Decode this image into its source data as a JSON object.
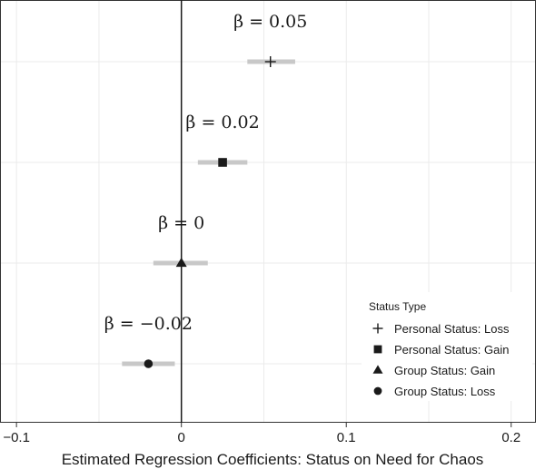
{
  "chart_data": {
    "type": "scatter",
    "xlabel": "Estimated Regression Coefficients: Status on Need for Chaos",
    "xlim": [
      -0.11,
      0.215
    ],
    "x_ticks": [
      -0.1,
      0,
      0.1,
      0.2
    ],
    "x_tick_labels": [
      "−0.1",
      "0",
      "0.1",
      "0.2"
    ],
    "grid": true,
    "reference_line_x": 0,
    "legend": {
      "title": "Status Type",
      "placement": "bottom-right",
      "entries": [
        "Personal Status: Loss",
        "Personal Status: Gain",
        "Group Status: Gain",
        "Group Status: Loss"
      ]
    },
    "series": [
      {
        "name": "Personal Status: Loss",
        "marker": "plus",
        "estimate": 0.054,
        "ci_low": 0.04,
        "ci_high": 0.069,
        "annotation": "β = 0.05"
      },
      {
        "name": "Personal Status: Gain",
        "marker": "square",
        "estimate": 0.025,
        "ci_low": 0.01,
        "ci_high": 0.04,
        "annotation": "β = 0.02"
      },
      {
        "name": "Group Status: Gain",
        "marker": "triangle",
        "estimate": 0.0,
        "ci_low": -0.017,
        "ci_high": 0.016,
        "annotation": "β = 0"
      },
      {
        "name": "Group Status: Loss",
        "marker": "circle",
        "estimate": -0.02,
        "ci_low": -0.036,
        "ci_high": -0.004,
        "annotation": "β = −0.02"
      }
    ],
    "colors": {
      "marker": "#1a1a1a",
      "ci_bar": "#c8c8c8",
      "grid": "#ebebeb",
      "zero_line": "#1a1a1a"
    }
  }
}
